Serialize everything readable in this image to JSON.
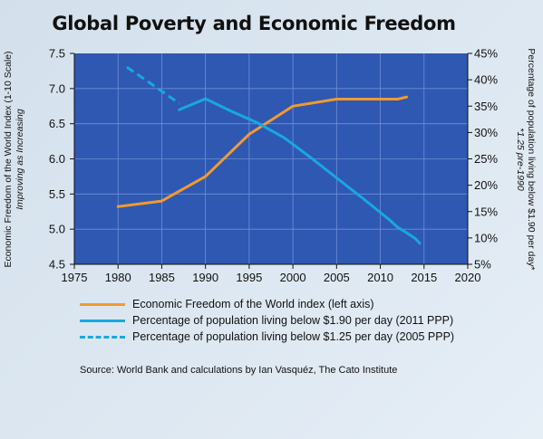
{
  "title": "Global Poverty and Economic Freedom",
  "chart_data": {
    "type": "line",
    "title": "Global Poverty and Economic Freedom",
    "xlim": [
      1975,
      2020
    ],
    "x_ticks": [
      "1975",
      "1980",
      "1985",
      "1990",
      "1995",
      "2000",
      "2005",
      "2010",
      "2015",
      "2020"
    ],
    "y_left": {
      "label": "Economic Freedom of the World Index (1-10 Scale)",
      "sublabel": "Improving as Increasing",
      "lim": [
        4.5,
        7.5
      ],
      "ticks": [
        "4.5",
        "5.0",
        "5.5",
        "6.0",
        "6.5",
        "7.0",
        "7.5"
      ]
    },
    "y_right": {
      "label": "Percentage of population living below $1.90 per day*",
      "sublabel": "*1.25 pre-1990",
      "lim": [
        5,
        45
      ],
      "ticks": [
        "5%",
        "10%",
        "15%",
        "20%",
        "25%",
        "30%",
        "35%",
        "40%",
        "45%"
      ]
    },
    "series": [
      {
        "name": "Economic Freedom of the World index (left axis)",
        "axis": "left",
        "color": "#f39a2e",
        "dash": false,
        "points": [
          [
            1980,
            5.32
          ],
          [
            1985,
            5.4
          ],
          [
            1990,
            5.75
          ],
          [
            1995,
            6.35
          ],
          [
            2000,
            6.75
          ],
          [
            2005,
            6.85
          ],
          [
            2010,
            6.85
          ],
          [
            2012,
            6.85
          ],
          [
            2013,
            6.88
          ]
        ]
      },
      {
        "name": "Percentage of population living below $1.90 per day (2011 PPP)",
        "axis": "right",
        "color": "#17a8e3",
        "dash": false,
        "points": [
          [
            1987,
            34.3
          ],
          [
            1990,
            36.4
          ],
          [
            1993,
            34.0
          ],
          [
            1996,
            31.8
          ],
          [
            1999,
            29.0
          ],
          [
            2002,
            25.3
          ],
          [
            2005,
            21.4
          ],
          [
            2008,
            17.5
          ],
          [
            2011,
            13.5
          ],
          [
            2012,
            12.0
          ],
          [
            2013,
            11.0
          ],
          [
            2014,
            9.9
          ],
          [
            2014.5,
            9.0
          ]
        ]
      },
      {
        "name": "Percentage of population living below $1.25 per day (2005 PPP)",
        "axis": "right",
        "color": "#17a8e3",
        "dash": true,
        "points": [
          [
            1981,
            42.4
          ],
          [
            1984,
            39.0
          ],
          [
            1987,
            35.5
          ]
        ]
      }
    ]
  },
  "legend": [
    {
      "label": "Economic Freedom of the World index (left axis)",
      "color": "#f39a2e",
      "dash": false
    },
    {
      "label": "Percentage of population living below $1.90 per day (2011 PPP)",
      "color": "#17a8e3",
      "dash": false
    },
    {
      "label": "Percentage of population living below $1.25 per day (2005 PPP)",
      "color": "#17a8e3",
      "dash": true
    }
  ],
  "source": "Source: World Bank and calculations by Ian Vasquéz, The Cato Institute",
  "colors": {
    "plot_bg": "#2f58b3",
    "orange": "#f39a2e",
    "blue": "#17a8e3"
  }
}
